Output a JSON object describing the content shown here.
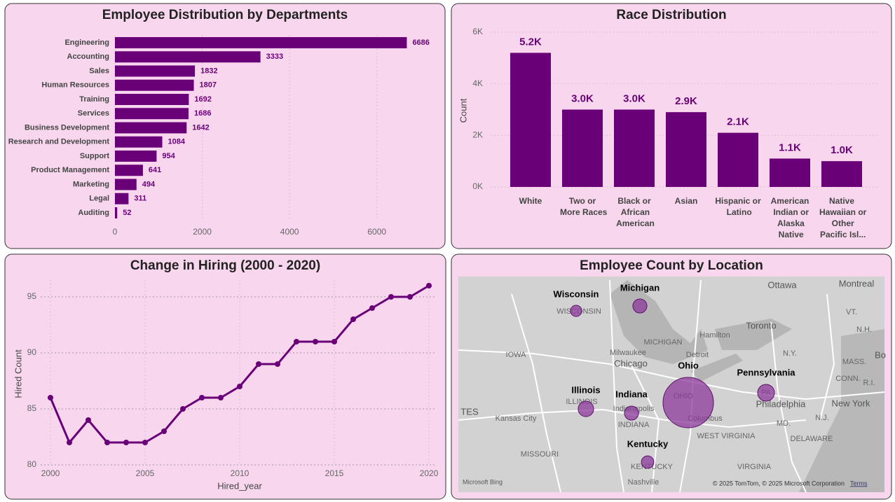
{
  "chart_data": [
    {
      "type": "bar",
      "horizontal": true,
      "title": "Employee Distribution by Departments",
      "categories": [
        "Engineering",
        "Accounting",
        "Sales",
        "Human Resources",
        "Training",
        "Services",
        "Business Development",
        "Research and Development",
        "Support",
        "Product Management",
        "Marketing",
        "Legal",
        "Auditing"
      ],
      "values": [
        6686,
        3333,
        1832,
        1807,
        1692,
        1686,
        1642,
        1084,
        954,
        641,
        494,
        311,
        52
      ],
      "color": "#6a0078",
      "xlim": [
        0,
        7000
      ],
      "xticks": [
        0,
        2000,
        4000,
        6000
      ],
      "grid": true
    },
    {
      "type": "bar",
      "horizontal": false,
      "title": "Race Distribution",
      "y_label": "Count",
      "categories": [
        "White",
        "Two or More Races",
        "Black or African American",
        "Asian",
        "Hispanic or Latino",
        "American Indian or Alaska Native",
        "Native Hawaiian or Other Pacific Isl..."
      ],
      "values": [
        5200,
        3000,
        3000,
        2900,
        2100,
        1100,
        1000
      ],
      "value_labels": [
        "5.2K",
        "3.0K",
        "3.0K",
        "2.9K",
        "2.1K",
        "1.1K",
        "1.0K"
      ],
      "color": "#6a0078",
      "ylim": [
        0,
        6000
      ],
      "yticks": [
        {
          "value": 0,
          "label": "0K"
        },
        {
          "value": 2000,
          "label": "2K"
        },
        {
          "value": 4000,
          "label": "4K"
        },
        {
          "value": 6000,
          "label": "6K"
        }
      ],
      "grid": true
    },
    {
      "type": "line",
      "title": "Change in Hiring (2000 - 2020)",
      "x_label": "Hired_year",
      "y_label": "Hired Count",
      "x": [
        2000,
        2001,
        2002,
        2003,
        2004,
        2005,
        2006,
        2007,
        2008,
        2009,
        2010,
        2011,
        2012,
        2013,
        2014,
        2015,
        2016,
        2017,
        2018,
        2019,
        2020
      ],
      "values": [
        86,
        82,
        84,
        82,
        82,
        82,
        83,
        85,
        86,
        86,
        87,
        89,
        89,
        91,
        91,
        91,
        93,
        94,
        95,
        95,
        96
      ],
      "color": "#6a0078",
      "xlim": [
        2000,
        2020
      ],
      "xticks": [
        2000,
        2005,
        2010,
        2015,
        2020
      ],
      "ylim": [
        80,
        96.5
      ],
      "yticks": [
        80,
        85,
        90,
        95
      ],
      "grid": true
    },
    {
      "type": "bubble-map",
      "title": "Employee Count by Location",
      "categories": [
        "Wisconsin",
        "Michigan",
        "Ohio",
        "Illinois",
        "Indiana",
        "Pennsylvania",
        "Kentucky"
      ],
      "values": [
        900,
        1400,
        18000,
        1700,
        1400,
        2000,
        1100
      ],
      "color": "#8e3a9c",
      "map_labels": [
        "Ottawa",
        "Montreal",
        "Toronto",
        "Hamilton",
        "Detroit",
        "MICHIGAN",
        "Milwaukee",
        "Chicago",
        "IOWA",
        "WISCONSIN",
        "ILLINOIS",
        "Indianapolis",
        "INDIANA",
        "OHIO",
        "Columbus",
        "Philadelphia",
        "PA",
        "New York",
        "Kansas City",
        "MISSOURI",
        "KENTUCKY",
        "Nashville",
        "WEST VIRGINIA",
        "VIRGINIA",
        "DELAWARE",
        "MD.",
        "N.J.",
        "N.Y.",
        "MASS.",
        "CONN.",
        "R.I.",
        "VT.",
        "N.H.",
        "TES",
        "Bo"
      ],
      "attribution": "© 2025 TomTom, © 2025 Microsoft Corporation",
      "terms": "Terms",
      "provider": "Microsoft Bing"
    }
  ]
}
